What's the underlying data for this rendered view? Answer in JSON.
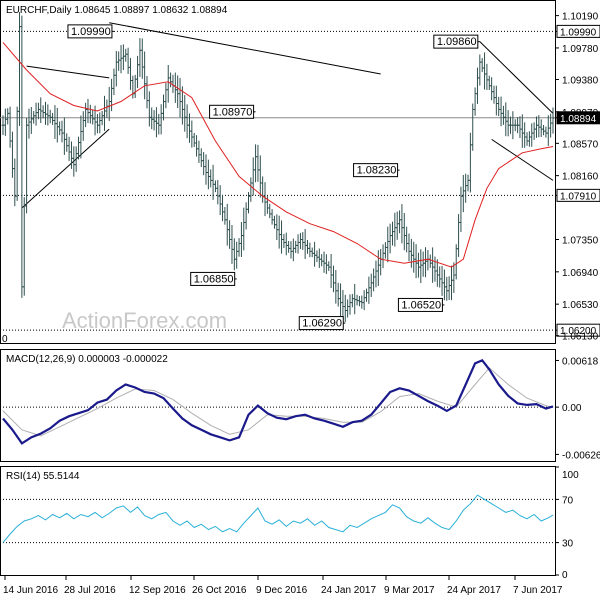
{
  "chart_data": [
    {
      "type": "ohlc",
      "header": "EURCHF,Daily  1.08645 1.08897 1.08632 1.08894",
      "watermark": "ActionForex.com",
      "ylim": [
        1.0605,
        1.1035
      ],
      "y_ticks": [
        "1.10190",
        "1.09990",
        "1.09780",
        "1.09380",
        "1.08970",
        "1.08894",
        "1.08570",
        "1.08160",
        "1.07910",
        "1.07350",
        "1.06940",
        "1.06530",
        "1.06200",
        "1.06130"
      ],
      "x_ticks": [
        "14 Jun 2016",
        "28 Jul 2016",
        "12 Sep 2016",
        "26 Oct 2016",
        "9 Dec 2016",
        "24 Jan 2017",
        "9 Mar 2017",
        "24 Apr 2017",
        "7 Jun 2017"
      ],
      "last_price_label": "1.08894",
      "left_edge_label": "0",
      "horizontal_levels": [
        {
          "label": "1.09990",
          "value": 1.0999,
          "style": "dotted"
        },
        {
          "label": "1.08894",
          "value": 1.08894,
          "style": "solid"
        },
        {
          "label": "1.07910",
          "value": 1.0791,
          "style": "dotted"
        },
        {
          "label": "1.06200",
          "value": 1.062,
          "style": "dotted"
        }
      ],
      "annotations": [
        {
          "label": "1.09990",
          "date_index": 47,
          "value": 1.0999
        },
        {
          "label": "1.08970",
          "date_index": 107,
          "value": 1.0897
        },
        {
          "label": "1.06850",
          "date_index": 99,
          "value": 1.0685
        },
        {
          "label": "1.06290",
          "date_index": 145,
          "value": 1.0629
        },
        {
          "label": "1.08230",
          "date_index": 168,
          "value": 1.0823
        },
        {
          "label": "1.06520",
          "date_index": 187,
          "value": 1.0652
        },
        {
          "label": "1.09860",
          "date_index": 202,
          "value": 1.0986
        }
      ],
      "trendlines": [
        {
          "from": [
            10,
            1.0955
          ],
          "to": [
            45,
            1.094
          ]
        },
        {
          "from": [
            8,
            1.0775
          ],
          "to": [
            45,
            1.0875
          ]
        },
        {
          "from": [
            45,
            1.101
          ],
          "to": [
            160,
            1.0945
          ]
        },
        {
          "from": [
            202,
            1.0986
          ],
          "to": [
            233,
            1.0895
          ]
        },
        {
          "from": [
            207,
            1.0862
          ],
          "to": [
            233,
            1.081
          ]
        }
      ],
      "key_closes": [
        [
          0,
          1.088
        ],
        [
          2,
          1.0895
        ],
        [
          5,
          1.079
        ],
        [
          7,
          1.1005
        ],
        [
          8,
          1.0675
        ],
        [
          10,
          1.088
        ],
        [
          15,
          1.09
        ],
        [
          20,
          1.089
        ],
        [
          25,
          1.087
        ],
        [
          30,
          1.083
        ],
        [
          35,
          1.09
        ],
        [
          40,
          1.088
        ],
        [
          45,
          1.091
        ],
        [
          48,
          1.096
        ],
        [
          52,
          1.097
        ],
        [
          55,
          1.092
        ],
        [
          58,
          1.0975
        ],
        [
          62,
          1.089
        ],
        [
          66,
          1.088
        ],
        [
          70,
          1.094
        ],
        [
          74,
          1.092
        ],
        [
          78,
          1.088
        ],
        [
          82,
          1.085
        ],
        [
          86,
          1.082
        ],
        [
          90,
          1.08
        ],
        [
          94,
          1.076
        ],
        [
          98,
          1.071
        ],
        [
          101,
          1.074
        ],
        [
          104,
          1.079
        ],
        [
          107,
          1.084
        ],
        [
          110,
          1.079
        ],
        [
          114,
          1.076
        ],
        [
          118,
          1.0735
        ],
        [
          122,
          1.072
        ],
        [
          126,
          1.0735
        ],
        [
          130,
          1.072
        ],
        [
          134,
          1.071
        ],
        [
          138,
          1.07
        ],
        [
          142,
          1.066
        ],
        [
          145,
          1.0645
        ],
        [
          148,
          1.066
        ],
        [
          152,
          1.0655
        ],
        [
          156,
          1.068
        ],
        [
          160,
          1.071
        ],
        [
          164,
          1.074
        ],
        [
          168,
          1.076
        ],
        [
          172,
          1.072
        ],
        [
          176,
          1.07
        ],
        [
          180,
          1.071
        ],
        [
          184,
          1.069
        ],
        [
          188,
          1.067
        ],
        [
          191,
          1.069
        ],
        [
          194,
          1.079
        ],
        [
          197,
          1.081
        ],
        [
          199,
          1.09
        ],
        [
          202,
          1.096
        ],
        [
          206,
          1.093
        ],
        [
          210,
          1.09
        ],
        [
          214,
          1.088
        ],
        [
          218,
          1.088
        ],
        [
          222,
          1.086
        ],
        [
          226,
          1.088
        ],
        [
          230,
          1.087
        ],
        [
          233,
          1.0889
        ]
      ],
      "ma_line": [
        [
          0,
          1.0985
        ],
        [
          10,
          1.095
        ],
        [
          20,
          1.092
        ],
        [
          30,
          1.0905
        ],
        [
          40,
          1.0898
        ],
        [
          50,
          1.091
        ],
        [
          60,
          1.093
        ],
        [
          70,
          1.0935
        ],
        [
          80,
          1.0915
        ],
        [
          90,
          1.086
        ],
        [
          100,
          1.0815
        ],
        [
          110,
          1.079
        ],
        [
          120,
          1.077
        ],
        [
          130,
          1.0755
        ],
        [
          140,
          1.0745
        ],
        [
          150,
          1.073
        ],
        [
          160,
          1.071
        ],
        [
          170,
          1.0705
        ],
        [
          180,
          1.071
        ],
        [
          190,
          1.07
        ],
        [
          195,
          1.071
        ],
        [
          200,
          1.076
        ],
        [
          205,
          1.08
        ],
        [
          210,
          1.0825
        ],
        [
          220,
          1.0845
        ],
        [
          228,
          1.085
        ],
        [
          233,
          1.0853
        ]
      ],
      "total_bars": 234
    },
    {
      "type": "line",
      "title": "MACD(12,26,9) 0.000003 -0.000022",
      "ylim": [
        -0.007,
        0.0073
      ],
      "y_ticks": [
        "0.00618",
        "0.00",
        "-0.00626"
      ],
      "series": [
        {
          "values": [
            [
              0,
              -0.0015
            ],
            [
              4,
              -0.003
            ],
            [
              8,
              -0.0048
            ],
            [
              12,
              -0.004
            ],
            [
              16,
              -0.0035
            ],
            [
              20,
              -0.0028
            ],
            [
              24,
              -0.0018
            ],
            [
              28,
              -0.0012
            ],
            [
              32,
              -0.0008
            ],
            [
              36,
              -0.0004
            ],
            [
              40,
              0.0006
            ],
            [
              44,
              0.001
            ],
            [
              48,
              0.0022
            ],
            [
              52,
              0.003
            ],
            [
              56,
              0.0026
            ],
            [
              60,
              0.002
            ],
            [
              64,
              0.0018
            ],
            [
              68,
              0.0012
            ],
            [
              72,
              -0.0002
            ],
            [
              76,
              -0.0015
            ],
            [
              80,
              -0.0024
            ],
            [
              84,
              -0.003
            ],
            [
              88,
              -0.0036
            ],
            [
              92,
              -0.004
            ],
            [
              96,
              -0.0044
            ],
            [
              100,
              -0.004
            ],
            [
              104,
              -0.001
            ],
            [
              108,
              0.0002
            ],
            [
              112,
              -0.0008
            ],
            [
              116,
              -0.0014
            ],
            [
              120,
              -0.0016
            ],
            [
              124,
              -0.0012
            ],
            [
              128,
              -0.001
            ],
            [
              132,
              -0.0015
            ],
            [
              136,
              -0.0018
            ],
            [
              140,
              -0.0022
            ],
            [
              144,
              -0.0026
            ],
            [
              148,
              -0.002
            ],
            [
              152,
              -0.0018
            ],
            [
              156,
              -0.001
            ],
            [
              160,
              0.0005
            ],
            [
              164,
              0.002
            ],
            [
              168,
              0.0025
            ],
            [
              172,
              0.0022
            ],
            [
              176,
              0.0015
            ],
            [
              180,
              0.0008
            ],
            [
              184,
              0.0002
            ],
            [
              188,
              -0.0005
            ],
            [
              192,
              0.0002
            ],
            [
              196,
              0.003
            ],
            [
              200,
              0.0058
            ],
            [
              203,
              0.0062
            ],
            [
              206,
              0.005
            ],
            [
              210,
              0.003
            ],
            [
              214,
              0.0015
            ],
            [
              218,
              0.0005
            ],
            [
              222,
              0.0003
            ],
            [
              226,
              0.0004
            ],
            [
              230,
              -0.0002
            ],
            [
              233,
              0.0001
            ]
          ]
        },
        {
          "values": [
            [
              0,
              -0.0005
            ],
            [
              8,
              -0.003
            ],
            [
              16,
              -0.0038
            ],
            [
              24,
              -0.0026
            ],
            [
              32,
              -0.0014
            ],
            [
              40,
              -0.0002
            ],
            [
              48,
              0.0012
            ],
            [
              56,
              0.0024
            ],
            [
              64,
              0.0022
            ],
            [
              72,
              0.001
            ],
            [
              80,
              -0.0008
            ],
            [
              88,
              -0.0024
            ],
            [
              96,
              -0.0036
            ],
            [
              104,
              -0.003
            ],
            [
              112,
              -0.001
            ],
            [
              120,
              -0.0012
            ],
            [
              128,
              -0.0012
            ],
            [
              136,
              -0.0015
            ],
            [
              144,
              -0.002
            ],
            [
              152,
              -0.002
            ],
            [
              160,
              -0.0006
            ],
            [
              168,
              0.0014
            ],
            [
              176,
              0.0018
            ],
            [
              184,
              0.0008
            ],
            [
              192,
              0.0
            ],
            [
              200,
              0.003
            ],
            [
              206,
              0.0052
            ],
            [
              214,
              0.003
            ],
            [
              222,
              0.0012
            ],
            [
              230,
              0.0002
            ],
            [
              233,
              0.0
            ]
          ]
        }
      ]
    },
    {
      "type": "line",
      "title": "RSI(14) 55.5144",
      "ylim": [
        0,
        100
      ],
      "y_ticks": [
        "100",
        "70",
        "30",
        "0"
      ],
      "levels": [
        70,
        30
      ],
      "series": [
        {
          "values": [
            [
              0,
              30
            ],
            [
              3,
              38
            ],
            [
              6,
              45
            ],
            [
              9,
              50
            ],
            [
              12,
              52
            ],
            [
              15,
              55
            ],
            [
              18,
              51
            ],
            [
              21,
              56
            ],
            [
              24,
              53
            ],
            [
              27,
              57
            ],
            [
              30,
              52
            ],
            [
              33,
              56
            ],
            [
              36,
              54
            ],
            [
              39,
              58
            ],
            [
              42,
              53
            ],
            [
              45,
              57
            ],
            [
              48,
              62
            ],
            [
              51,
              64
            ],
            [
              54,
              58
            ],
            [
              57,
              63
            ],
            [
              60,
              55
            ],
            [
              63,
              52
            ],
            [
              66,
              56
            ],
            [
              69,
              58
            ],
            [
              72,
              50
            ],
            [
              75,
              46
            ],
            [
              78,
              50
            ],
            [
              81,
              44
            ],
            [
              84,
              47
            ],
            [
              87,
              42
            ],
            [
              90,
              45
            ],
            [
              93,
              40
            ],
            [
              96,
              43
            ],
            [
              99,
              40
            ],
            [
              102,
              48
            ],
            [
              105,
              55
            ],
            [
              108,
              62
            ],
            [
              111,
              50
            ],
            [
              114,
              47
            ],
            [
              117,
              51
            ],
            [
              120,
              45
            ],
            [
              123,
              50
            ],
            [
              126,
              48
            ],
            [
              129,
              52
            ],
            [
              132,
              46
            ],
            [
              135,
              50
            ],
            [
              138,
              44
            ],
            [
              141,
              42
            ],
            [
              144,
              40
            ],
            [
              147,
              46
            ],
            [
              150,
              44
            ],
            [
              153,
              48
            ],
            [
              156,
              52
            ],
            [
              159,
              55
            ],
            [
              162,
              58
            ],
            [
              165,
              65
            ],
            [
              168,
              62
            ],
            [
              171,
              54
            ],
            [
              174,
              50
            ],
            [
              177,
              48
            ],
            [
              180,
              53
            ],
            [
              183,
              48
            ],
            [
              186,
              44
            ],
            [
              189,
              42
            ],
            [
              192,
              50
            ],
            [
              195,
              60
            ],
            [
              198,
              66
            ],
            [
              201,
              74
            ],
            [
              204,
              70
            ],
            [
              207,
              66
            ],
            [
              210,
              62
            ],
            [
              213,
              58
            ],
            [
              216,
              60
            ],
            [
              219,
              55
            ],
            [
              222,
              52
            ],
            [
              225,
              56
            ],
            [
              228,
              50
            ],
            [
              231,
              53
            ],
            [
              233,
              55.5
            ]
          ]
        }
      ]
    }
  ]
}
